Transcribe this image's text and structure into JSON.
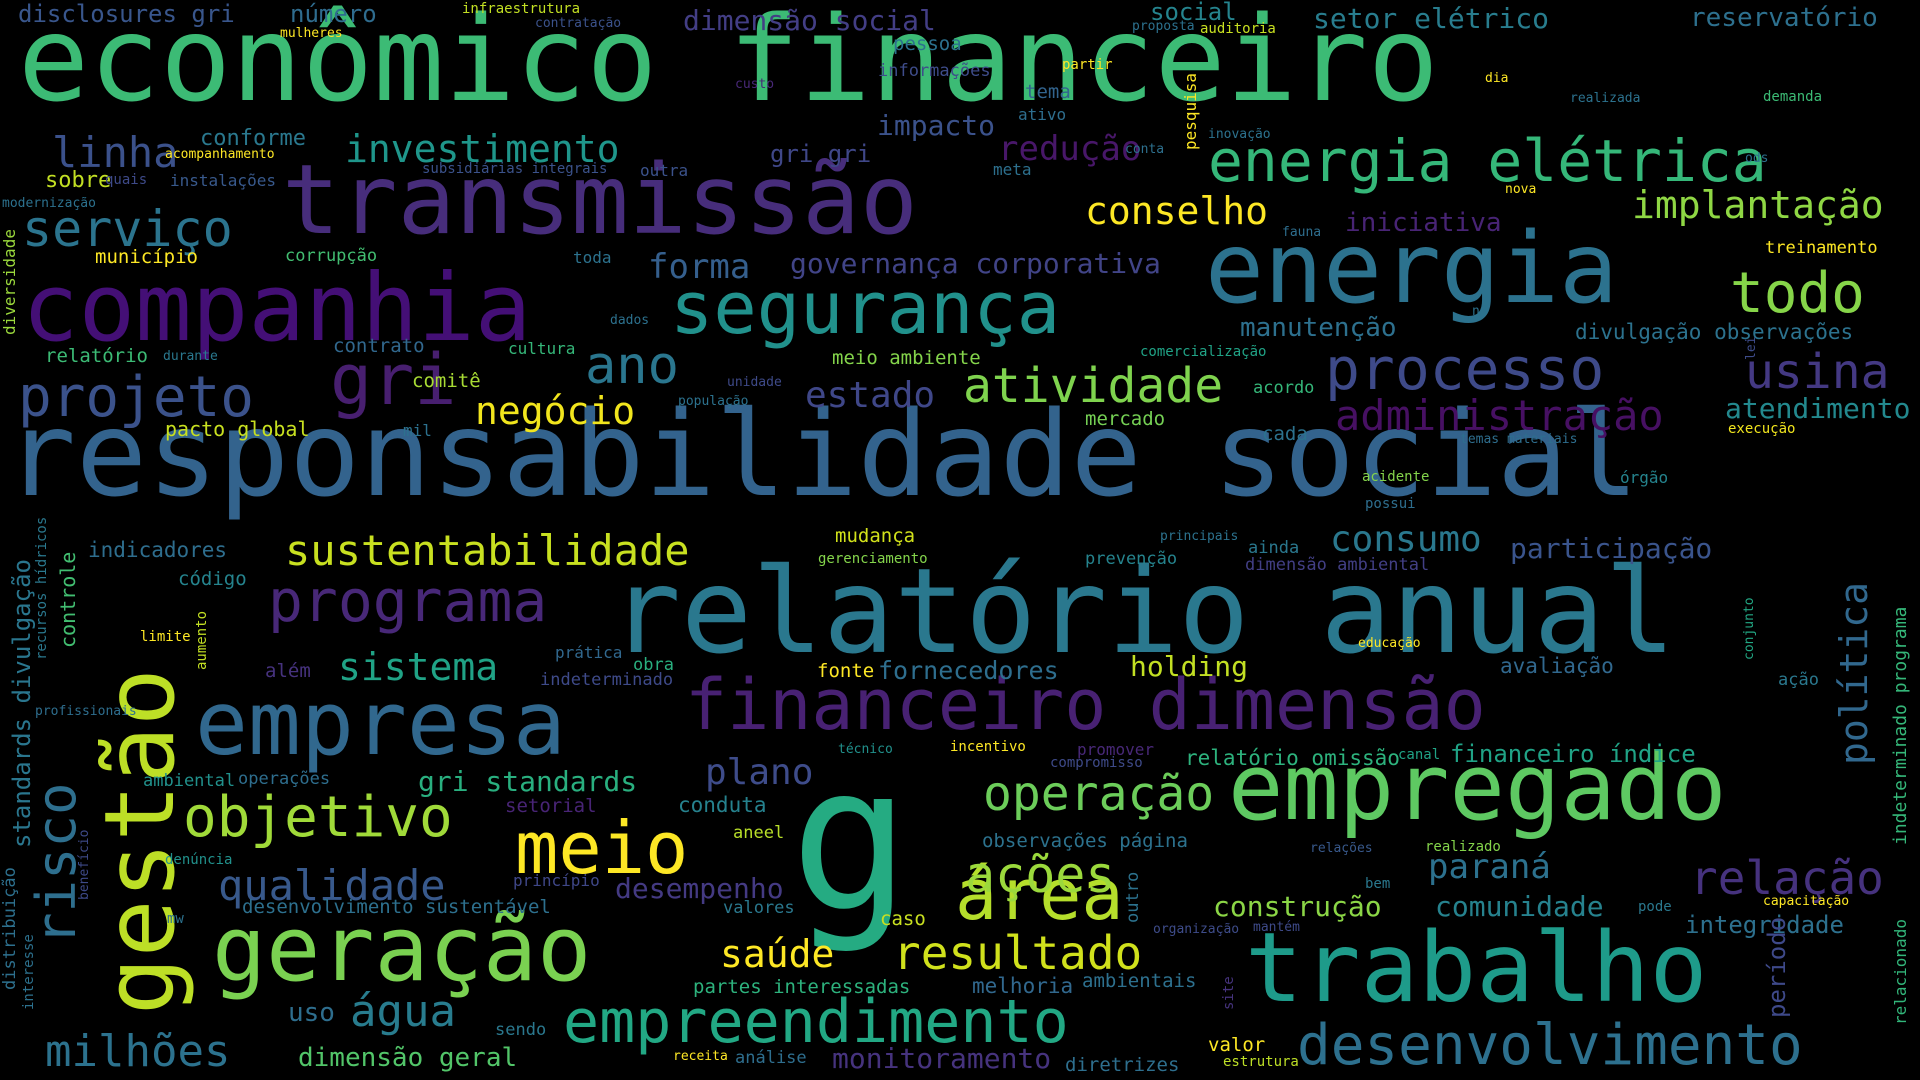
{
  "words": [
    {
      "text": "econômico financeiro",
      "color": "#3cbb75"
    },
    {
      "text": "responsabilidade social",
      "color": "#33638d"
    },
    {
      "text": "relatório anual",
      "color": "#2a788e"
    },
    {
      "text": "transmissão",
      "color": "#472d7b"
    },
    {
      "text": "energia",
      "color": "#2c728e"
    },
    {
      "text": "companhia",
      "color": "#440f76"
    },
    {
      "text": "trabalho",
      "color": "#1e9b8a"
    },
    {
      "text": "g",
      "color": "#25ab82"
    },
    {
      "text": "empregado",
      "color": "#5ec962"
    },
    {
      "text": "geração",
      "color": "#7ad151"
    },
    {
      "text": "empresa",
      "color": "#31688e"
    },
    {
      "text": "gestão",
      "color": "#bddf26"
    },
    {
      "text": "financeiro dimensão",
      "color": "#482173"
    },
    {
      "text": "segurança",
      "color": "#21918c"
    },
    {
      "text": "empreendimento",
      "color": "#22a884"
    },
    {
      "text": "desenvolvimento",
      "color": "#2d708e"
    },
    {
      "text": "programa",
      "color": "#482878"
    },
    {
      "text": "processo",
      "color": "#3e4a89"
    },
    {
      "text": "energia elétrica",
      "color": "#35b779"
    },
    {
      "text": "risco",
      "color": "#2e6f8e"
    },
    {
      "text": "meio",
      "color": "#fde725"
    },
    {
      "text": "área",
      "color": "#b5de2b"
    },
    {
      "text": "projeto",
      "color": "#3b528b"
    },
    {
      "text": "objetivo",
      "color": "#a0da39"
    },
    {
      "text": "operação",
      "color": "#6ccd5a"
    },
    {
      "text": "gri",
      "color": "#481f70"
    },
    {
      "text": "usina",
      "color": "#443983"
    },
    {
      "text": "todo",
      "color": "#86d549"
    },
    {
      "text": "ano",
      "color": "#2a768e"
    },
    {
      "text": "resultado",
      "color": "#d0e11c"
    },
    {
      "text": "relação",
      "color": "#46327e"
    },
    {
      "text": "atividade",
      "color": "#7fd34e"
    },
    {
      "text": "serviço",
      "color": "#2b748e"
    },
    {
      "text": "sustentabilidade",
      "color": "#c8e020"
    },
    {
      "text": "ações",
      "color": "#9bd93c"
    },
    {
      "text": "saúde",
      "color": "#fde725"
    },
    {
      "text": "água",
      "color": "#287c8e"
    },
    {
      "text": "qualidade",
      "color": "#38598c"
    },
    {
      "text": "milhões",
      "color": "#2c728e"
    },
    {
      "text": "administração",
      "color": "#471063"
    },
    {
      "text": "investimento",
      "color": "#1f968b"
    },
    {
      "text": "conselho",
      "color": "#fde725"
    },
    {
      "text": "negócio",
      "color": "#f1e51d"
    },
    {
      "text": "consumo",
      "color": "#2a788e"
    },
    {
      "text": "sistema",
      "color": "#20a386"
    },
    {
      "text": "política",
      "color": "#31688e"
    },
    {
      "text": "linha",
      "color": "#3b518b"
    },
    {
      "text": "implantação",
      "color": "#8fd744"
    },
    {
      "text": "plano",
      "color": "#3e4c8a"
    },
    {
      "text": "paraná",
      "color": "#2c718e"
    },
    {
      "text": "estado",
      "color": "#3f4788"
    },
    {
      "text": "participação",
      "color": "#3a548c"
    },
    {
      "text": "atendimento",
      "color": "#23898e"
    },
    {
      "text": "governança corporativa",
      "color": "#414487"
    },
    {
      "text": "forma",
      "color": "#355f8d"
    },
    {
      "text": "redução",
      "color": "#481769"
    },
    {
      "text": "holding",
      "color": "#c2df23"
    },
    {
      "text": "construção",
      "color": "#8bd646"
    },
    {
      "text": "comunidade",
      "color": "#26828e"
    },
    {
      "text": "fornecedores",
      "color": "#2e6e8e"
    },
    {
      "text": "manutenção",
      "color": "#2d708e"
    },
    {
      "text": "iniciativa",
      "color": "#482475"
    },
    {
      "text": "gri standards",
      "color": "#29af7f"
    },
    {
      "text": "impacto",
      "color": "#3b528b"
    },
    {
      "text": "desempenho",
      "color": "#443a83"
    },
    {
      "text": "monitoramento",
      "color": "#46337e"
    },
    {
      "text": "setor elétrico",
      "color": "#287d8e"
    },
    {
      "text": "reservatório",
      "color": "#2d708e"
    },
    {
      "text": "dimensão social",
      "color": "#433e85"
    },
    {
      "text": "disclosures gri",
      "color": "#39568c"
    },
    {
      "text": "número",
      "color": "#2f6c8e"
    },
    {
      "text": "social",
      "color": "#25848e"
    },
    {
      "text": "financeiro índice",
      "color": "#20a386"
    },
    {
      "text": "relatório omissão",
      "color": "#2db27d"
    },
    {
      "text": "dimensão geral",
      "color": "#52c569"
    },
    {
      "text": "uso",
      "color": "#2e6e8e"
    },
    {
      "text": "integridade",
      "color": "#2d708e"
    },
    {
      "text": "indeterminado programa",
      "color": "#35b779"
    },
    {
      "text": "período",
      "color": "#3e4989"
    },
    {
      "text": "divulgação observações",
      "color": "#2c728e"
    },
    {
      "text": "conduta",
      "color": "#26828e"
    },
    {
      "text": "avaliação",
      "color": "#31688e"
    },
    {
      "text": "standards divulgação",
      "color": "#2a768e"
    },
    {
      "text": "controle",
      "color": "#42be71"
    },
    {
      "text": "indicadores",
      "color": "#2e6e8e"
    },
    {
      "text": "sobre",
      "color": "#c2df23"
    },
    {
      "text": "conforme",
      "color": "#2a788e"
    },
    {
      "text": "gri gri",
      "color": "#3f4788"
    },
    {
      "text": "mudança",
      "color": "#d2e21b"
    },
    {
      "text": "desenvolvimento sustentável",
      "color": "#2d708e"
    },
    {
      "text": "partes interessadas",
      "color": "#2db27d"
    },
    {
      "text": "melhoria",
      "color": "#31688e"
    },
    {
      "text": "ambientais",
      "color": "#2d708e"
    },
    {
      "text": "município",
      "color": "#fde725"
    },
    {
      "text": "relatório",
      "color": "#3cbb75"
    },
    {
      "text": "pacto global",
      "color": "#c8e020"
    },
    {
      "text": "observações página",
      "color": "#2c728e"
    },
    {
      "text": "meio ambiente",
      "color": "#84d44b"
    },
    {
      "text": "mercado",
      "color": "#75d054"
    },
    {
      "text": "código",
      "color": "#25848e"
    },
    {
      "text": "operações",
      "color": "#2e6e8e"
    },
    {
      "text": "ambiental",
      "color": "#21918c"
    },
    {
      "text": "comitê",
      "color": "#a8db34"
    },
    {
      "text": "contrato",
      "color": "#31688e"
    },
    {
      "text": "cultura",
      "color": "#35b779"
    },
    {
      "text": "corrupção",
      "color": "#42be71"
    },
    {
      "text": "treinamento",
      "color": "#fde725"
    },
    {
      "text": "além",
      "color": "#46327e"
    },
    {
      "text": "cada",
      "color": "#2c728e"
    },
    {
      "text": "valor",
      "color": "#fde725"
    },
    {
      "text": "diretrizes",
      "color": "#2e6f8e"
    },
    {
      "text": "fonte",
      "color": "#fde725"
    },
    {
      "text": "caso",
      "color": "#c8e020"
    },
    {
      "text": "valores",
      "color": "#2a788e"
    },
    {
      "text": "pessoa",
      "color": "#2c718e"
    },
    {
      "text": "tema",
      "color": "#32648e"
    },
    {
      "text": "informações",
      "color": "#3e4c8a"
    },
    {
      "text": "mil",
      "color": "#2c718e"
    },
    {
      "text": "acordo",
      "color": "#35b779"
    },
    {
      "text": "prevenção",
      "color": "#25848e"
    },
    {
      "text": "dimensão ambiental",
      "color": "#423f85"
    },
    {
      "text": "ainda",
      "color": "#2a788e"
    },
    {
      "text": "obra",
      "color": "#29af7f"
    },
    {
      "text": "indeterminado",
      "color": "#3e4a89"
    },
    {
      "text": "prática",
      "color": "#31688e"
    },
    {
      "text": "princípio",
      "color": "#3f4788"
    },
    {
      "text": "setorial",
      "color": "#482475"
    },
    {
      "text": "aneel",
      "color": "#b8de29"
    },
    {
      "text": "denúncia",
      "color": "#21918c"
    },
    {
      "text": "diversidade",
      "color": "#9bd93c"
    },
    {
      "text": "distribuição",
      "color": "#2d708e"
    },
    {
      "text": "recursos hídricos",
      "color": "#2a788e"
    },
    {
      "text": "aumento",
      "color": "#c2df23"
    },
    {
      "text": "limite",
      "color": "#fde725"
    },
    {
      "text": "educação",
      "color": "#fde725"
    },
    {
      "text": "conjunto",
      "color": "#22a884"
    },
    {
      "text": "ação",
      "color": "#2a788e"
    },
    {
      "text": "relacionado",
      "color": "#32b67a"
    },
    {
      "text": "execução",
      "color": "#f1e51d"
    },
    {
      "text": "acidente",
      "color": "#84d44b"
    },
    {
      "text": "possui",
      "color": "#2e6e8e"
    },
    {
      "text": "órgão",
      "color": "#25848e"
    },
    {
      "text": "temas materiais",
      "color": "#2e6e8e"
    },
    {
      "text": "canal",
      "color": "#20a386"
    },
    {
      "text": "compromisso",
      "color": "#3e4a89"
    },
    {
      "text": "incentivo",
      "color": "#fde725"
    },
    {
      "text": "técnico",
      "color": "#21918c"
    },
    {
      "text": "promover",
      "color": "#482878"
    },
    {
      "text": "relações",
      "color": "#38598c"
    },
    {
      "text": "realizado",
      "color": "#84d44b"
    },
    {
      "text": "bem",
      "color": "#2a788e"
    },
    {
      "text": "pode",
      "color": "#2a788e"
    },
    {
      "text": "capacitação",
      "color": "#fde725"
    },
    {
      "text": "organização",
      "color": "#3e4c8a"
    },
    {
      "text": "mantém",
      "color": "#3e4a89"
    },
    {
      "text": "site",
      "color": "#46337e"
    },
    {
      "text": "outro",
      "color": "#2c728e"
    },
    {
      "text": "sendo",
      "color": "#2a788e"
    },
    {
      "text": "análise",
      "color": "#2e6e8e"
    },
    {
      "text": "receita",
      "color": "#fde725"
    },
    {
      "text": "estrutura",
      "color": "#bddf26"
    },
    {
      "text": "gerenciamento",
      "color": "#84d44b"
    },
    {
      "text": "principais",
      "color": "#2c728e"
    },
    {
      "text": "mw",
      "color": "#2c728e"
    },
    {
      "text": "benefício",
      "color": "#3e4a89"
    },
    {
      "text": "interesse",
      "color": "#2c718e"
    },
    {
      "text": "profissionais",
      "color": "#2e6e8e"
    },
    {
      "text": "infraestrutura",
      "color": "#c2df23"
    },
    {
      "text": "mulheres",
      "color": "#fde725"
    },
    {
      "text": "contratação",
      "color": "#3b528b"
    },
    {
      "text": "proposta",
      "color": "#2c718e"
    },
    {
      "text": "auditoria",
      "color": "#c8e020"
    },
    {
      "text": "custo",
      "color": "#482878"
    },
    {
      "text": "partir",
      "color": "#fde725"
    },
    {
      "text": "ativo",
      "color": "#2e6e8e"
    },
    {
      "text": "dia",
      "color": "#fde725"
    },
    {
      "text": "realizada",
      "color": "#2c728e"
    },
    {
      "text": "demanda",
      "color": "#3cbb75"
    },
    {
      "text": "pesquisa",
      "color": "#fde725"
    },
    {
      "text": "inovação",
      "color": "#2c728e"
    },
    {
      "text": "meta",
      "color": "#2d708e"
    },
    {
      "text": "outra",
      "color": "#3b528b"
    },
    {
      "text": "conta",
      "color": "#2d708e"
    },
    {
      "text": "ods",
      "color": "#2c718e"
    },
    {
      "text": "nova",
      "color": "#fde725"
    },
    {
      "text": "acompanhamento",
      "color": "#fde725"
    },
    {
      "text": "quais",
      "color": "#3e4a89"
    },
    {
      "text": "instalações",
      "color": "#38598c"
    },
    {
      "text": "subsidiárias integrais",
      "color": "#3b528b"
    },
    {
      "text": "modernização",
      "color": "#2c718e"
    },
    {
      "text": "fauna",
      "color": "#2e6e8e"
    },
    {
      "text": "toda",
      "color": "#2c728e"
    },
    {
      "text": "dados",
      "color": "#2c718e"
    },
    {
      "text": "nº",
      "color": "#2c728e"
    },
    {
      "text": "lei",
      "color": "#3e4c8a"
    },
    {
      "text": "comercialização",
      "color": "#20a386"
    },
    {
      "text": "durante",
      "color": "#2a788e"
    },
    {
      "text": "unidade",
      "color": "#3e4a89"
    },
    {
      "text": "população",
      "color": "#2c728e"
    }
  ]
}
